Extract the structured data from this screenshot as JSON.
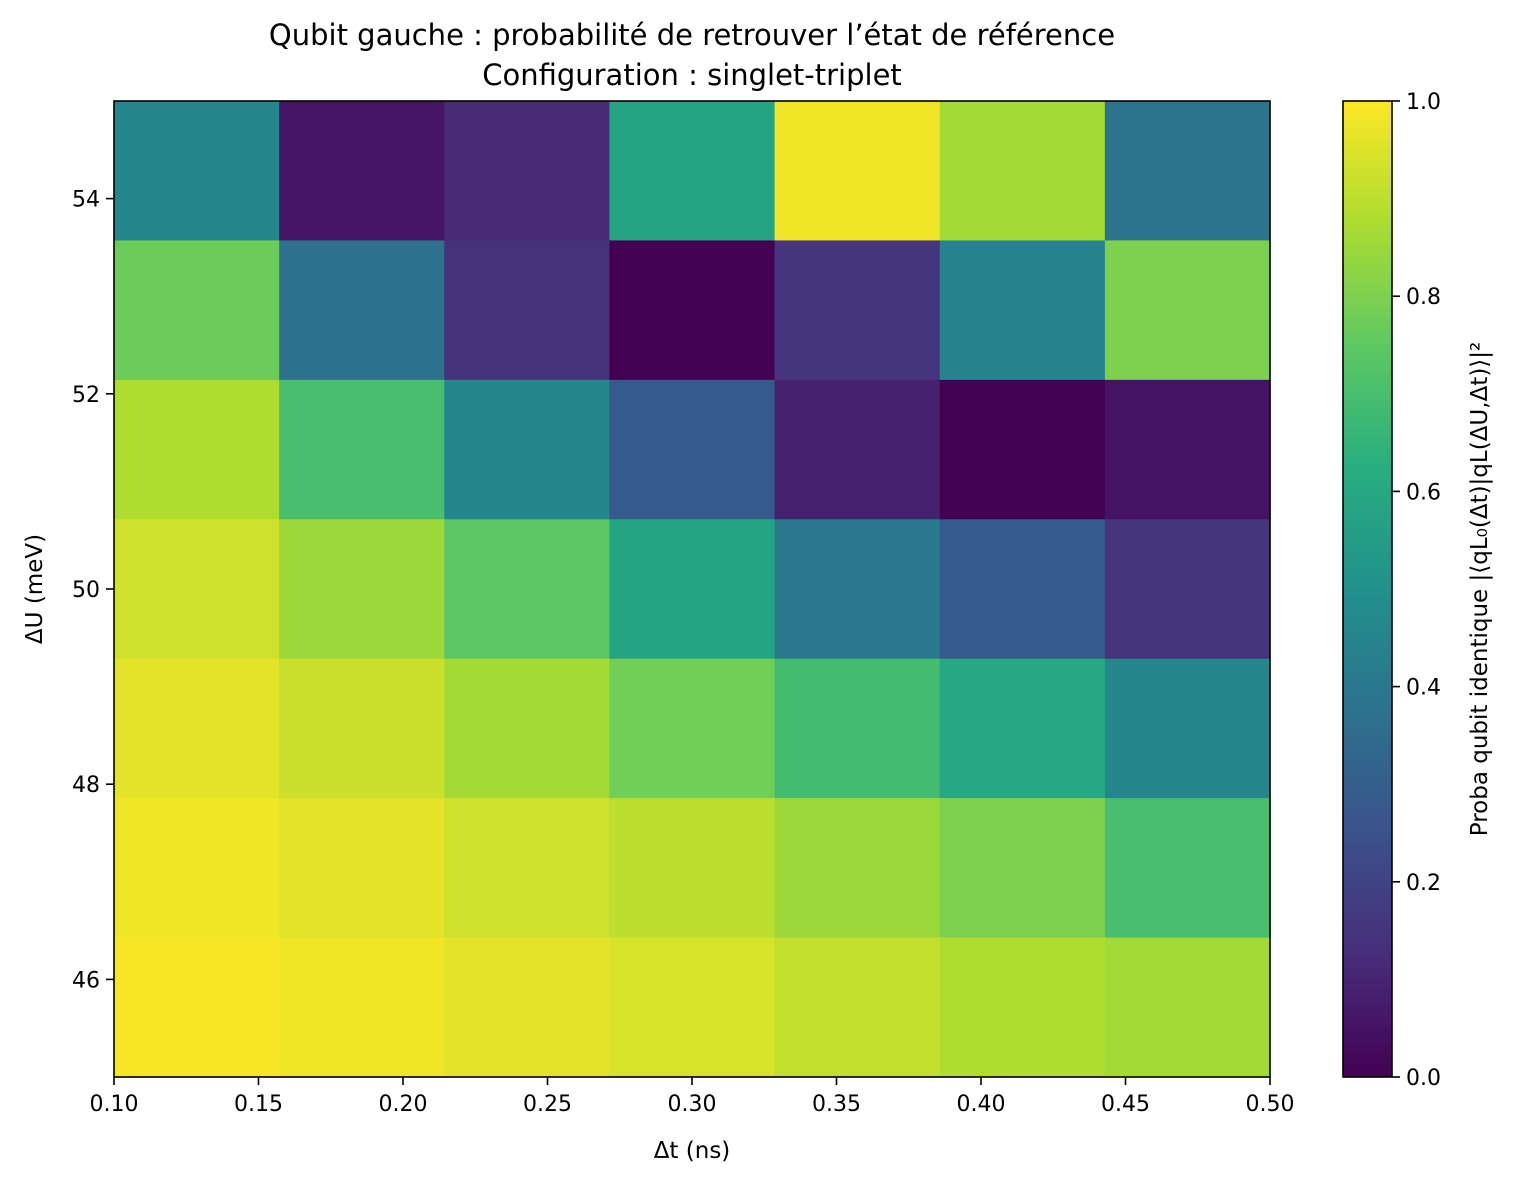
{
  "chart_data": {
    "type": "heatmap",
    "title": "Qubit gauche : probabilité de retrouver l’état de référence",
    "subtitle": "Configuration : singlet-triplet",
    "xlabel": "Δt (ns)",
    "ylabel": "ΔU (meV)",
    "colorbar_label": "Proba qubit identique  |⟨qL₀(Δt)|qL(ΔU,Δt)⟩|²",
    "colormap": "viridis",
    "x_range": [
      0.1,
      0.5
    ],
    "y_range": [
      45,
      55
    ],
    "color_range": [
      0.0,
      1.0
    ],
    "x_ticks": [
      "0.10",
      "0.15",
      "0.20",
      "0.25",
      "0.30",
      "0.35",
      "0.40",
      "0.45",
      "0.50"
    ],
    "y_ticks": [
      "46",
      "48",
      "50",
      "52",
      "54"
    ],
    "colorbar_ticks": [
      "0.0",
      "0.2",
      "0.4",
      "0.6",
      "0.8",
      "1.0"
    ],
    "x_centers": [
      0.129,
      0.186,
      0.243,
      0.3,
      0.357,
      0.414,
      0.471
    ],
    "y_centers": [
      54.29,
      52.86,
      51.43,
      50.0,
      48.57,
      47.14,
      45.71
    ],
    "values": [
      [
        0.46,
        0.06,
        0.12,
        0.58,
        0.98,
        0.86,
        0.38
      ],
      [
        0.77,
        0.37,
        0.14,
        0.0,
        0.15,
        0.44,
        0.8
      ],
      [
        0.88,
        0.7,
        0.45,
        0.28,
        0.09,
        0.0,
        0.05
      ],
      [
        0.93,
        0.85,
        0.74,
        0.58,
        0.4,
        0.28,
        0.15
      ],
      [
        0.96,
        0.92,
        0.86,
        0.78,
        0.69,
        0.6,
        0.46
      ],
      [
        0.98,
        0.96,
        0.93,
        0.9,
        0.85,
        0.8,
        0.7
      ],
      [
        0.99,
        0.98,
        0.96,
        0.94,
        0.91,
        0.88,
        0.86
      ]
    ]
  }
}
